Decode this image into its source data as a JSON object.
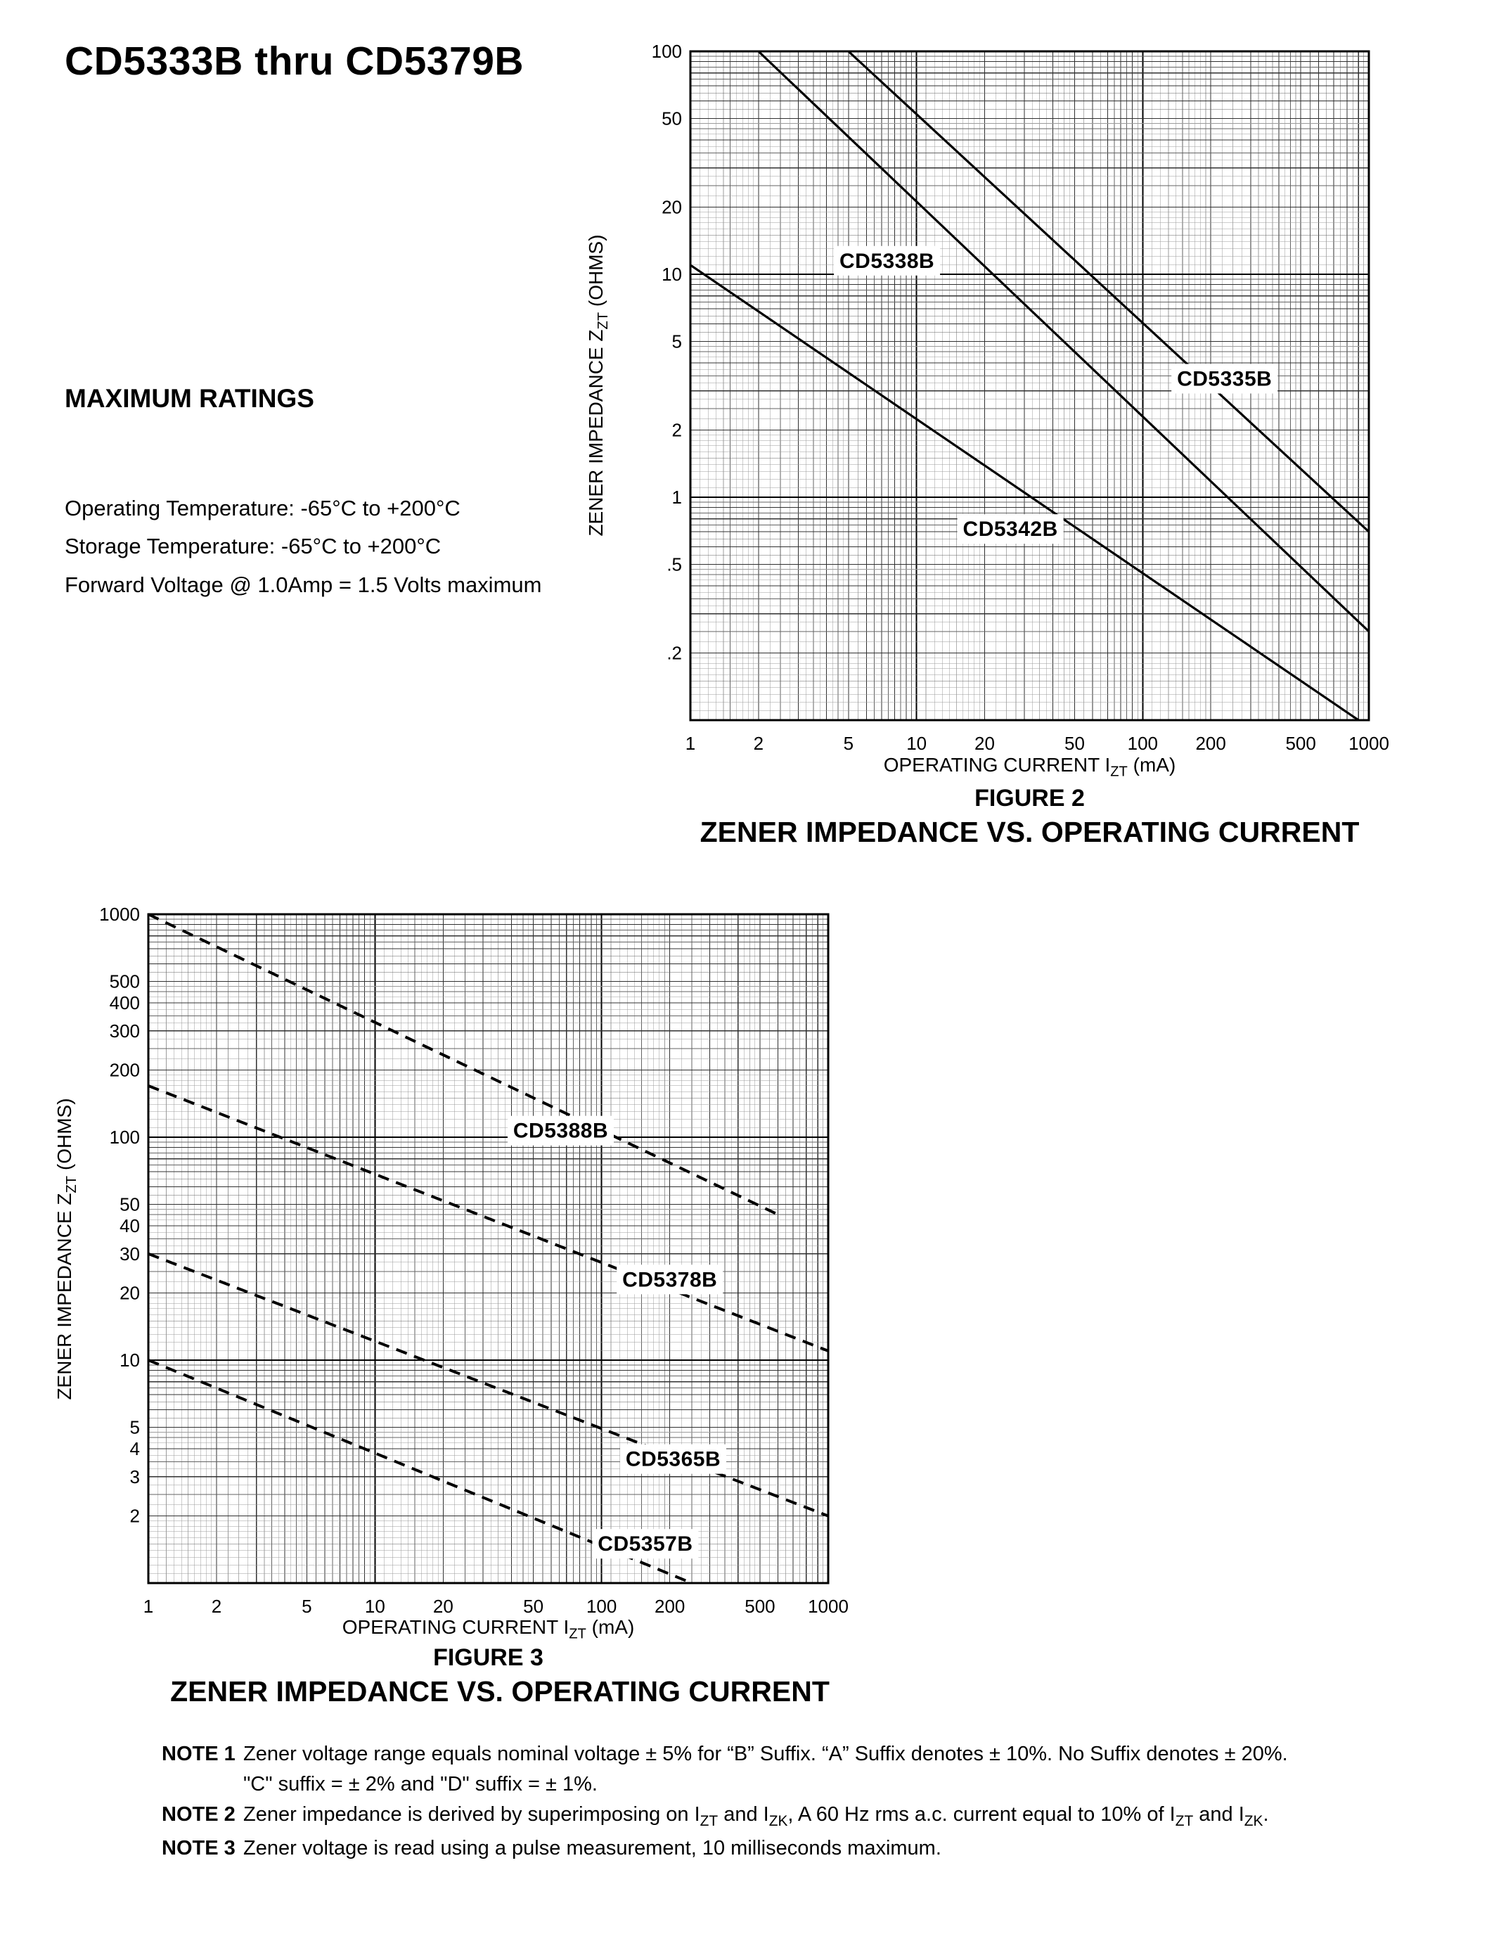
{
  "header": {
    "title": "CD5333B thru CD5379B"
  },
  "max_ratings": {
    "heading": "MAXIMUM RATINGS",
    "lines": [
      "Operating Temperature: -65°C to +200°C",
      "Storage Temperature: -65°C to +200°C",
      "Forward Voltage @ 1.0Amp = 1.5 Volts maximum"
    ]
  },
  "chart_data": [
    {
      "id": "figure-2",
      "type": "line",
      "figure_label": "FIGURE 2",
      "title": "ZENER IMPEDANCE VS. OPERATING CURRENT",
      "xlabel": "OPERATING CURRENT IZT (mA)",
      "ylabel": "ZENER IMPEDANCE ZZT (OHMS)",
      "xlabel_segments": [
        {
          "text": "OPERATING CURRENT I"
        },
        {
          "sub": "ZT"
        },
        {
          "text": " (mA)"
        }
      ],
      "ylabel_segments": [
        {
          "text": "ZENER IMPEDANCE Z"
        },
        {
          "sub": "ZT"
        },
        {
          "text": " (OHMS)"
        }
      ],
      "xscale": "log",
      "yscale": "log",
      "xlim": [
        1,
        1000
      ],
      "ylim": [
        0.1,
        100
      ],
      "grid": true,
      "xticks": {
        "values": [
          1,
          2,
          5,
          10,
          20,
          50,
          100,
          200,
          500,
          1000
        ],
        "labels": [
          "1",
          "2",
          "5",
          "10",
          "20",
          "50",
          "100",
          "200",
          "500",
          "1000"
        ]
      },
      "yticks": {
        "values": [
          100,
          50,
          20,
          10,
          5,
          2,
          1,
          0.5,
          0.2
        ],
        "labels": [
          "100",
          "50",
          "20",
          "10",
          "5",
          "2",
          "1",
          ".5",
          ".2"
        ]
      },
      "series": [
        {
          "name": "CD5338B",
          "style": "solid",
          "points": [
            [
              2,
              100
            ],
            [
              1000,
              0.25
            ]
          ],
          "label_at": [
            7.4,
            11.5
          ]
        },
        {
          "name": "CD5335B",
          "style": "solid",
          "points": [
            [
              5,
              100
            ],
            [
              1000,
              0.7
            ]
          ],
          "label_at": [
            230,
            3.4
          ]
        },
        {
          "name": "CD5342B",
          "style": "solid",
          "points": [
            [
              1,
              11
            ],
            [
              900,
              0.1
            ]
          ],
          "label_at": [
            26,
            0.72
          ]
        }
      ]
    },
    {
      "id": "figure-3",
      "type": "line",
      "figure_label": "FIGURE 3",
      "title": "ZENER IMPEDANCE VS. OPERATING CURRENT",
      "xlabel": "OPERATING CURRENT IZT (mA)",
      "ylabel": "ZENER IMPEDANCE ZZT (OHMS)",
      "xlabel_segments": [
        {
          "text": "OPERATING CURRENT I"
        },
        {
          "sub": "ZT"
        },
        {
          "text": " (mA)"
        }
      ],
      "ylabel_segments": [
        {
          "text": "ZENER IMPEDANCE Z"
        },
        {
          "sub": "ZT"
        },
        {
          "text": " (OHMS)"
        }
      ],
      "xscale": "log",
      "yscale": "log",
      "xlim": [
        1,
        1000
      ],
      "ylim": [
        1,
        1000
      ],
      "grid": true,
      "xticks": {
        "values": [
          1,
          2,
          5,
          10,
          20,
          50,
          100,
          200,
          500,
          1000
        ],
        "labels": [
          "1",
          "2",
          "5",
          "10",
          "20",
          "50",
          "100",
          "200",
          "500",
          "1000"
        ]
      },
      "yticks": {
        "values": [
          1000,
          500,
          400,
          300,
          200,
          100,
          50,
          40,
          30,
          20,
          10,
          5,
          4,
          3,
          2
        ],
        "labels": [
          "1000",
          "500",
          "400",
          "300",
          "200",
          "100",
          "50",
          "40",
          "30",
          "20",
          "10",
          "5",
          "4",
          "3",
          "2"
        ]
      },
      "series": [
        {
          "name": "CD5388B",
          "style": "dashed",
          "points": [
            [
              1,
              1000
            ],
            [
              600,
              45
            ]
          ],
          "label_at": [
            66,
            107
          ]
        },
        {
          "name": "CD5378B",
          "style": "dashed",
          "points": [
            [
              1,
              170
            ],
            [
              1000,
              11
            ]
          ],
          "label_at": [
            200,
            23
          ]
        },
        {
          "name": "CD5365B",
          "style": "dashed",
          "points": [
            [
              1,
              30
            ],
            [
              1000,
              2
            ]
          ],
          "label_at": [
            207,
            3.6
          ]
        },
        {
          "name": "CD5357B",
          "style": "dashed",
          "points": [
            [
              1,
              10
            ],
            [
              250,
              1
            ]
          ],
          "label_at": [
            156,
            1.5
          ]
        }
      ]
    }
  ],
  "notes": [
    {
      "label": "NOTE 1",
      "segments": [
        {
          "text": "Zener voltage range equals nominal voltage ± 5% for “B” Suffix. “A” Suffix denotes ± 10%. No Suffix denotes ± 20%."
        }
      ]
    },
    {
      "label": "",
      "segments": [
        {
          "text": "\"C\" suffix = ± 2% and \"D\" suffix = ± 1%."
        }
      ]
    },
    {
      "label": "NOTE 2",
      "segments": [
        {
          "text": "Zener impedance is derived by superimposing on I"
        },
        {
          "sub": "ZT"
        },
        {
          "text": " and I"
        },
        {
          "sub": "ZK"
        },
        {
          "text": ", A 60 Hz rms a.c. current equal to 10% of I"
        },
        {
          "sub": "ZT"
        },
        {
          "text": " and I"
        },
        {
          "sub": "ZK"
        },
        {
          "text": "."
        }
      ]
    },
    {
      "label": "NOTE 3",
      "segments": [
        {
          "text": "Zener voltage is read using a pulse measurement, 10 milliseconds maximum."
        }
      ]
    }
  ]
}
